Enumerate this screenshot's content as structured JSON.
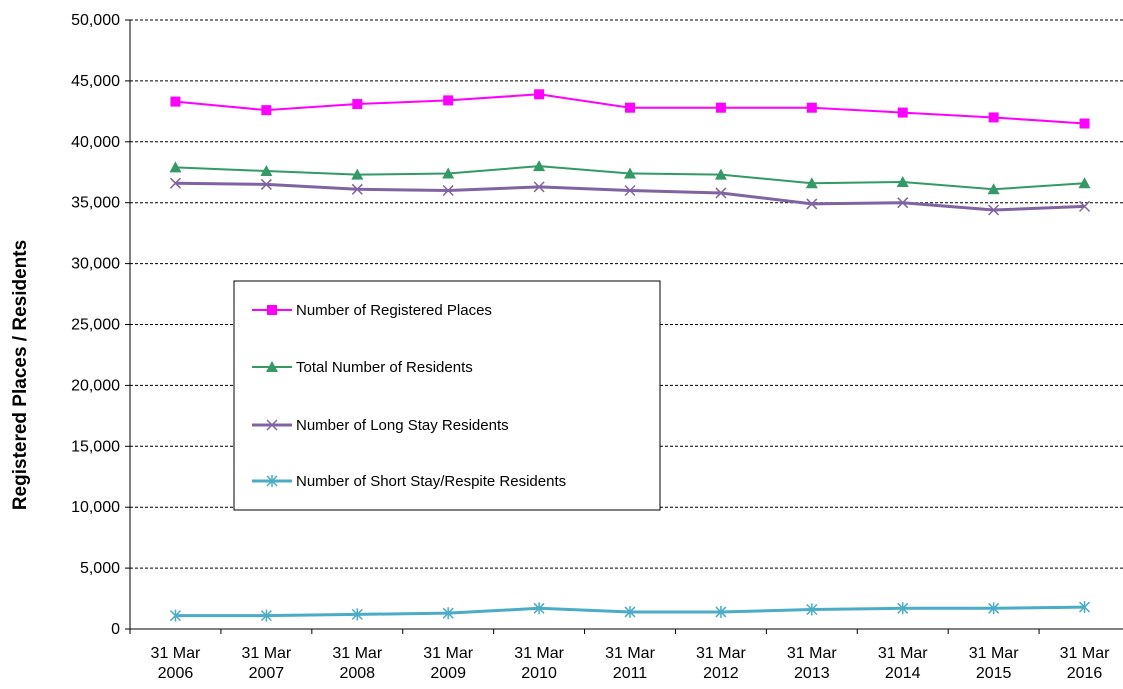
{
  "chart_data": {
    "type": "line",
    "title": "",
    "xlabel": "",
    "ylabel": "Registered Places / Residents",
    "categories": [
      [
        "31 Mar",
        "2006"
      ],
      [
        "31 Mar",
        "2007"
      ],
      [
        "31 Mar",
        "2008"
      ],
      [
        "31 Mar",
        "2009"
      ],
      [
        "31 Mar",
        "2010"
      ],
      [
        "31 Mar",
        "2011"
      ],
      [
        "31 Mar",
        "2012"
      ],
      [
        "31 Mar",
        "2013"
      ],
      [
        "31 Mar",
        "2014"
      ],
      [
        "31 Mar",
        "2015"
      ],
      [
        "31 Mar",
        "2016"
      ]
    ],
    "ylim": [
      0,
      50000
    ],
    "yticks": [
      0,
      5000,
      10000,
      15000,
      20000,
      25000,
      30000,
      35000,
      40000,
      45000,
      50000
    ],
    "ytick_labels": [
      "0",
      "5,000",
      "10,000",
      "15,000",
      "20,000",
      "25,000",
      "30,000",
      "35,000",
      "40,000",
      "45,000",
      "50,000"
    ],
    "grid": "horizontal dashed",
    "legend_position": "center-left",
    "series": [
      {
        "name": "Number of Registered Places",
        "color": "#ff00ff",
        "marker": "square",
        "values": [
          43300,
          42600,
          43100,
          43400,
          43900,
          42800,
          42800,
          42800,
          42400,
          42000,
          41500
        ]
      },
      {
        "name": "Total Number of Residents",
        "color": "#339966",
        "marker": "triangle",
        "values": [
          37900,
          37600,
          37300,
          37400,
          38000,
          37400,
          37300,
          36600,
          36700,
          36100,
          36600
        ]
      },
      {
        "name": "Number of Long Stay Residents",
        "color": "#8064a2",
        "marker": "x",
        "values": [
          36600,
          36500,
          36100,
          36000,
          36300,
          36000,
          35800,
          34900,
          35000,
          34400,
          34700
        ]
      },
      {
        "name": "Number of Short Stay/Respite Residents",
        "color": "#4bacc6",
        "marker": "asterisk",
        "values": [
          1100,
          1100,
          1200,
          1300,
          1700,
          1400,
          1400,
          1600,
          1700,
          1700,
          1800
        ]
      }
    ]
  }
}
